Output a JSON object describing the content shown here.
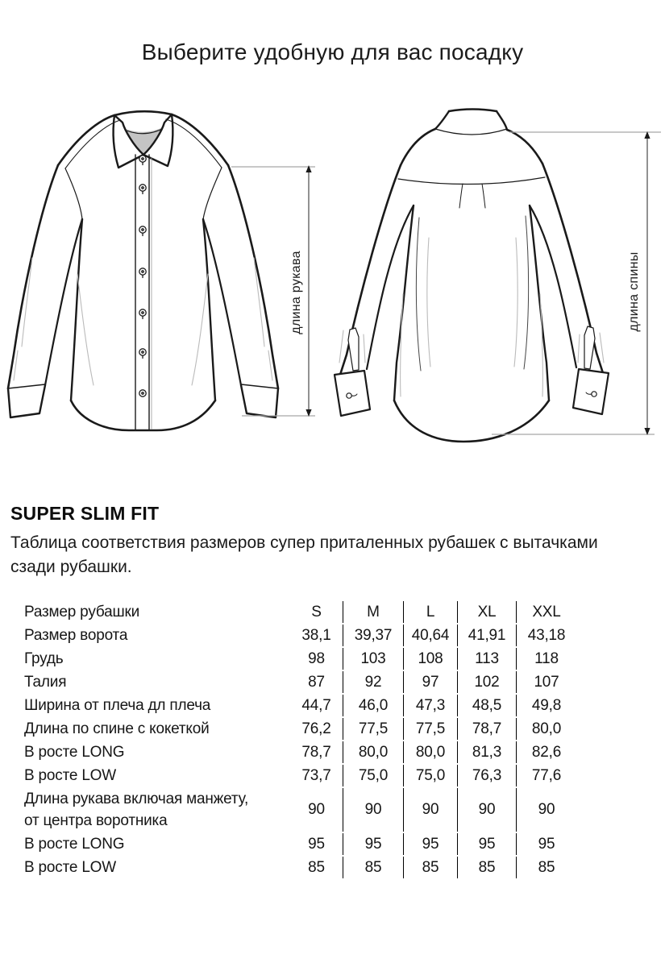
{
  "page": {
    "title": "Выберите удобную для вас посадку"
  },
  "diagram": {
    "front_label": "длина рукава",
    "back_label": "длина спины"
  },
  "section": {
    "heading": "SUPER SLIM FIT",
    "description_lines": [
      "Таблица соответствия размеров супер приталенных рубашек с вытачками",
      "сзади рубашки."
    ]
  },
  "size_table": {
    "rows": [
      {
        "label": [
          "Размер рубашки"
        ],
        "values": [
          "S",
          "M",
          "L",
          "XL",
          "XXL"
        ],
        "header": true
      },
      {
        "label": [
          "Размер ворота"
        ],
        "values": [
          "38,1",
          "39,37",
          "40,64",
          "41,91",
          "43,18"
        ]
      },
      {
        "label": [
          "Грудь"
        ],
        "values": [
          "98",
          "103",
          "108",
          "113",
          "118"
        ]
      },
      {
        "label": [
          "Талия"
        ],
        "values": [
          "87",
          "92",
          "97",
          "102",
          "107"
        ]
      },
      {
        "label": [
          "Ширина от плеча дл плеча"
        ],
        "values": [
          "44,7",
          "46,0",
          "47,3",
          "48,5",
          "49,8"
        ]
      },
      {
        "label": [
          "Длина по спине с кокеткой"
        ],
        "values": [
          "76,2",
          "77,5",
          "77,5",
          "78,7",
          "80,0"
        ]
      },
      {
        "label": [
          "В росте LONG"
        ],
        "values": [
          "78,7",
          "80,0",
          "80,0",
          "81,3",
          "82,6"
        ]
      },
      {
        "label": [
          "В росте LOW"
        ],
        "values": [
          "73,7",
          "75,0",
          "75,0",
          "76,3",
          "77,6"
        ]
      },
      {
        "label": [
          "Длина рукава включая манжету,",
          "от центра воротника"
        ],
        "values": [
          "90",
          "90",
          "90",
          "90",
          "90"
        ],
        "tall": true
      },
      {
        "label": [
          "В росте LONG"
        ],
        "values": [
          "95",
          "95",
          "95",
          "95",
          "95"
        ]
      },
      {
        "label": [
          "В росте LOW"
        ],
        "values": [
          "85",
          "85",
          "85",
          "85",
          "85"
        ]
      }
    ]
  },
  "colors": {
    "outline": "#1a1a1a",
    "seam": "#3a3a3a",
    "fold": "#bbbbbb",
    "extension_line": "#a8a8a8",
    "dimension_line": "#4a4a4a"
  }
}
